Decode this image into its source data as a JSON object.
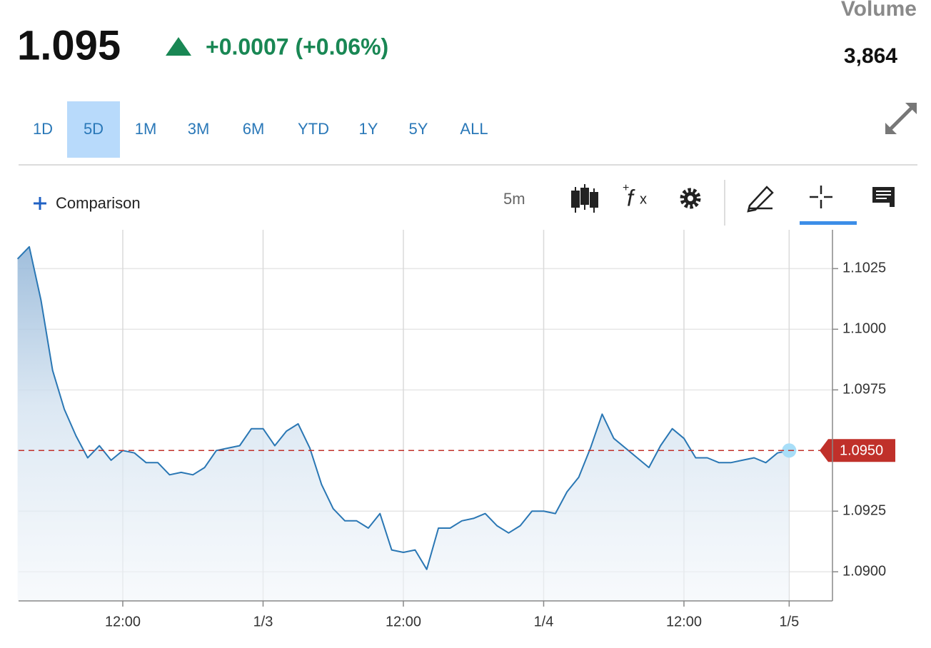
{
  "header": {
    "price": "1.095",
    "change": "+0.0007 (+0.06%)",
    "volume_label": "Volume",
    "volume": "3,864"
  },
  "ranges": {
    "items": [
      "1D",
      "5D",
      "1M",
      "3M",
      "6M",
      "YTD",
      "1Y",
      "5Y",
      "ALL"
    ],
    "selected": "5D"
  },
  "toolbar": {
    "comparison": "Comparison",
    "interval": "5m"
  },
  "chart_data": {
    "type": "line",
    "categories": [
      null,
      null,
      null,
      null,
      null,
      null,
      null,
      null,
      null,
      "12:00",
      null,
      null,
      null,
      null,
      null,
      null,
      null,
      null,
      null,
      null,
      null,
      "1/3",
      null,
      null,
      null,
      null,
      null,
      null,
      null,
      null,
      null,
      null,
      null,
      "12:00",
      null,
      null,
      null,
      null,
      null,
      null,
      null,
      null,
      null,
      null,
      null,
      "1/4",
      null,
      null,
      null,
      null,
      null,
      null,
      null,
      null,
      null,
      null,
      null,
      "12:00",
      null,
      null,
      null,
      null,
      null,
      null,
      null,
      null,
      "1/5"
    ],
    "series": [
      {
        "color": "#2a77b4",
        "values": [
          1.1029,
          1.1034,
          1.1012,
          1.0983,
          1.0967,
          1.0956,
          1.0947,
          1.0952,
          1.0946,
          1.095,
          1.0949,
          1.0945,
          1.0945,
          1.094,
          1.0941,
          1.094,
          1.0943,
          1.095,
          1.0951,
          1.0952,
          1.0959,
          1.0959,
          1.0952,
          1.0958,
          1.0961,
          1.0951,
          1.0936,
          1.0926,
          1.0921,
          1.0921,
          1.0918,
          1.0924,
          1.0909,
          1.0908,
          1.0909,
          1.0901,
          1.0918,
          1.0918,
          1.0921,
          1.0922,
          1.0924,
          1.0919,
          1.0916,
          1.0919,
          1.0925,
          1.0925,
          1.0924,
          1.0933,
          1.0939,
          1.0951,
          1.0965,
          1.0955,
          1.0951,
          1.0947,
          1.0943,
          1.0952,
          1.0959,
          1.0955,
          1.0947,
          1.0947,
          1.0945,
          1.0945,
          1.0946,
          1.0947,
          1.0945,
          1.0949,
          1.095
        ]
      }
    ],
    "ylim": [
      1.0888,
      1.1041
    ],
    "yticks": [
      {
        "value": 1.09,
        "label": "1.0900"
      },
      {
        "value": 1.0925,
        "label": "1.0925"
      },
      {
        "value": 1.0975,
        "label": "1.0975"
      },
      {
        "value": 1.1,
        "label": "1.1000"
      },
      {
        "value": 1.1025,
        "label": "1.1025"
      }
    ],
    "grid": true,
    "reference_line": {
      "value": 1.095,
      "label": "1.0950",
      "color": "#c0302a"
    }
  }
}
